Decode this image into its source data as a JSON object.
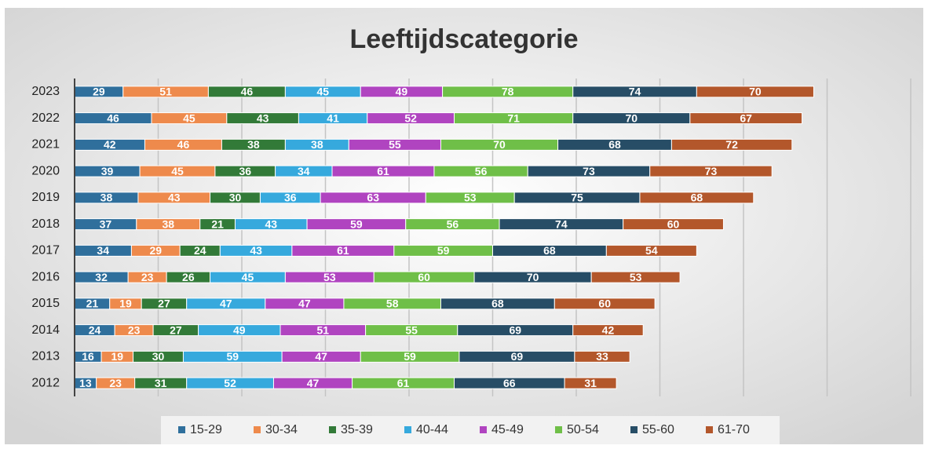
{
  "chart_data": {
    "type": "stacked-bar-horizontal",
    "title": "Leeftijdscategorie",
    "categories": [
      "2023",
      "2022",
      "2021",
      "2020",
      "2019",
      "2018",
      "2017",
      "2016",
      "2015",
      "2014",
      "2013",
      "2012"
    ],
    "series": [
      {
        "name": "15-29",
        "color": "#2f6f9c",
        "values": [
          29,
          46,
          42,
          39,
          38,
          37,
          34,
          32,
          21,
          24,
          16,
          13
        ]
      },
      {
        "name": "30-34",
        "color": "#ee8a4c",
        "values": [
          51,
          45,
          46,
          45,
          43,
          38,
          29,
          23,
          19,
          23,
          19,
          23
        ]
      },
      {
        "name": "35-39",
        "color": "#327a38",
        "values": [
          46,
          43,
          38,
          36,
          30,
          21,
          24,
          26,
          27,
          27,
          30,
          31
        ]
      },
      {
        "name": "40-44",
        "color": "#36a9dd",
        "values": [
          45,
          41,
          38,
          34,
          36,
          43,
          43,
          45,
          47,
          49,
          59,
          52
        ]
      },
      {
        "name": "45-49",
        "color": "#b044c0",
        "values": [
          49,
          52,
          55,
          61,
          63,
          59,
          61,
          53,
          47,
          51,
          47,
          47
        ]
      },
      {
        "name": "50-54",
        "color": "#6fbf48",
        "values": [
          78,
          71,
          70,
          56,
          53,
          56,
          59,
          60,
          58,
          55,
          59,
          61
        ]
      },
      {
        "name": "55-60",
        "color": "#274d66",
        "values": [
          74,
          70,
          68,
          73,
          75,
          74,
          68,
          70,
          68,
          69,
          69,
          66
        ]
      },
      {
        "name": "61-70",
        "color": "#b3572b",
        "values": [
          70,
          67,
          72,
          73,
          68,
          60,
          54,
          53,
          60,
          42,
          33,
          31
        ]
      }
    ],
    "xlim": [
      0,
      500
    ],
    "xticks": [
      0,
      50,
      100,
      150,
      200,
      250,
      300,
      350,
      400,
      450,
      500
    ],
    "grid": true,
    "legend": "bottom"
  }
}
